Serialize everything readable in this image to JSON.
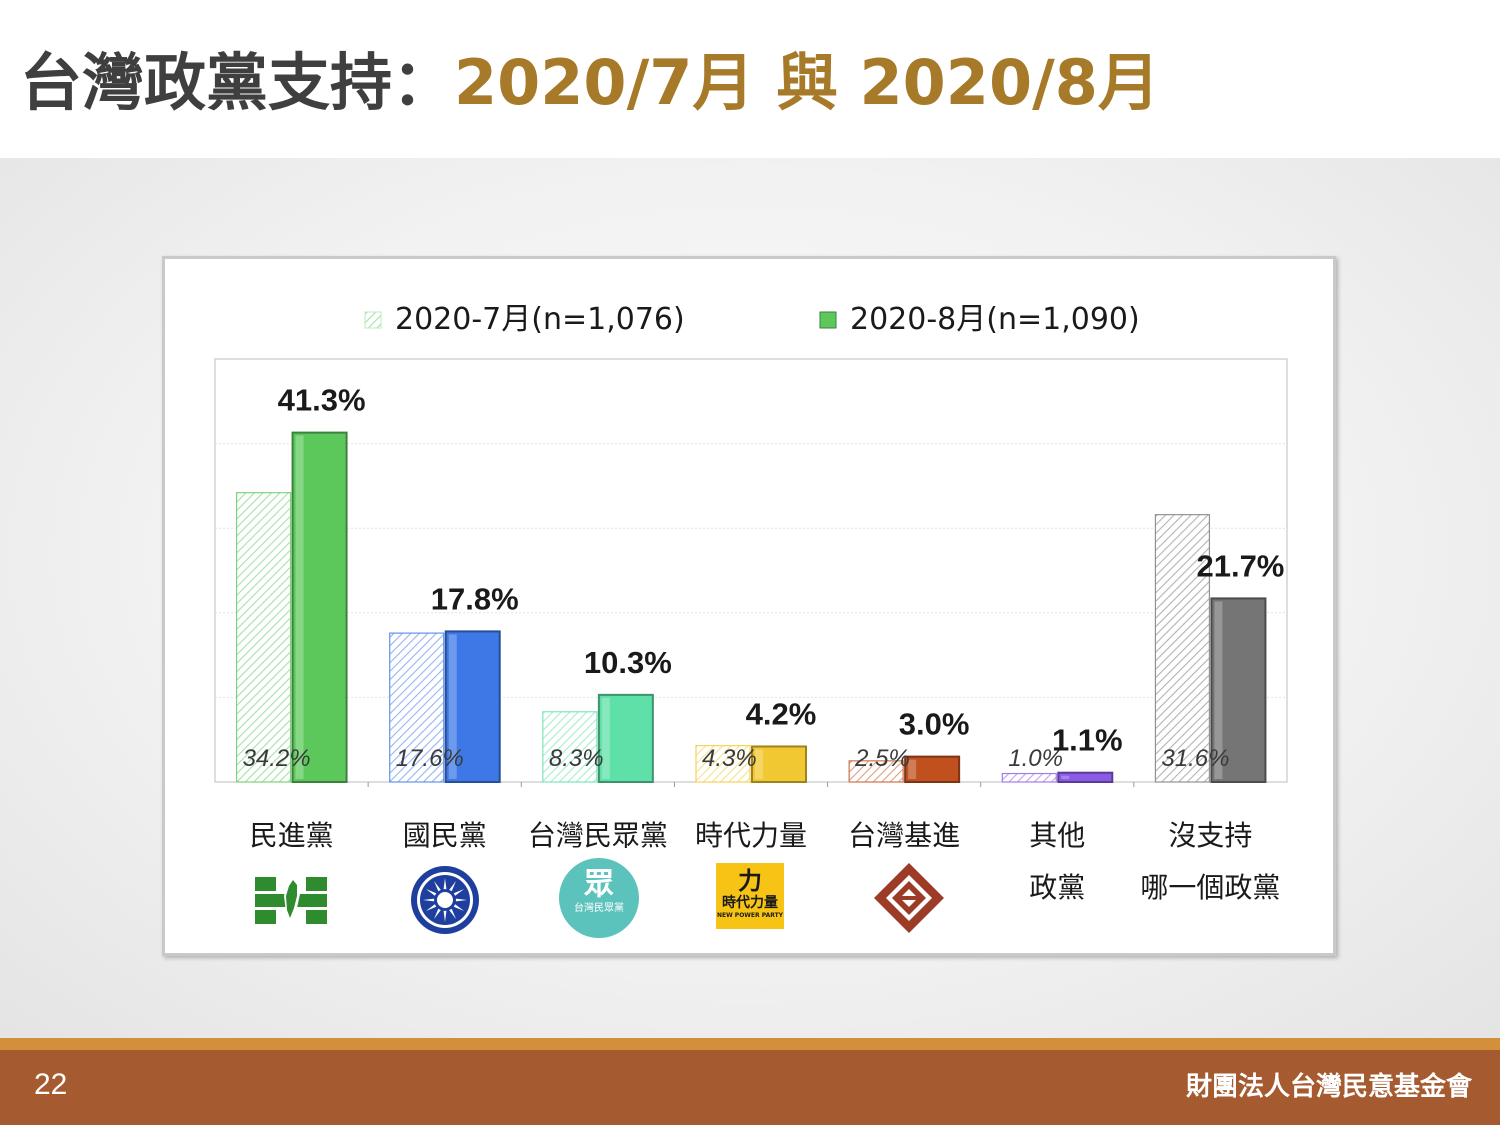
{
  "slide": {
    "title_main": "台灣政黨支持：",
    "title_accent": "2020/7月 與 2020/8月",
    "page_number": "22",
    "organization": "財團法人台灣民意基金會"
  },
  "logos": {
    "tpp_mark": "眾",
    "tpp_name": "台灣民眾黨",
    "npp_mark": "力",
    "npp_name": "時代力量",
    "npp_english": "NEW POWER PARTY"
  },
  "chart_data": {
    "type": "bar",
    "categories": [
      [
        "民進黨"
      ],
      [
        "國民黨"
      ],
      [
        "台灣民眾黨"
      ],
      [
        "時代力量"
      ],
      [
        "台灣基進"
      ],
      [
        "其他",
        "政黨"
      ],
      [
        "沒支持",
        "哪一個政黨"
      ]
    ],
    "series": [
      {
        "name": "2020-7月(n=1,076)",
        "values": [
          34.2,
          17.6,
          8.3,
          4.3,
          2.5,
          1.0,
          31.6
        ],
        "labels": [
          "34.2%",
          "17.6%",
          "8.3%",
          "4.3%",
          "2.5%",
          "1.0%",
          "31.6%"
        ],
        "style": "hatched"
      },
      {
        "name": "2020-8月(n=1,090)",
        "values": [
          41.3,
          17.8,
          10.3,
          4.2,
          3.0,
          1.1,
          21.7
        ],
        "labels": [
          "41.3%",
          "17.8%",
          "10.3%",
          "4.2%",
          "3.0%",
          "1.1%",
          "21.7%"
        ],
        "style": "solid"
      }
    ],
    "category_colors": [
      "#5cc85c",
      "#3d78e6",
      "#5fe0a8",
      "#f2c832",
      "#c0501e",
      "#8a5ce6",
      "#757575"
    ],
    "ylim": [
      0,
      50
    ],
    "grid": true,
    "legend_position": "top"
  }
}
